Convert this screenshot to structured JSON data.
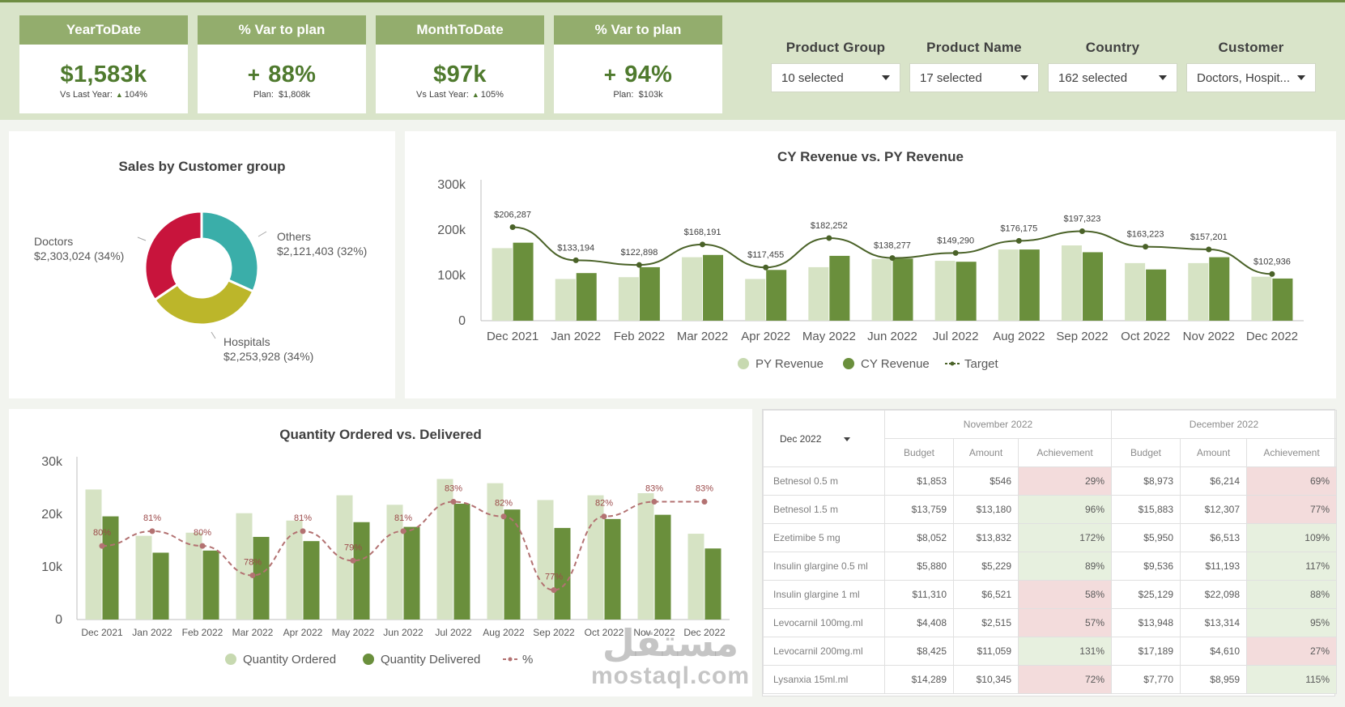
{
  "kpis": [
    {
      "title": "YearToDate",
      "value": "$1,583k",
      "prefix": "",
      "sub_label": "Vs Last Year:",
      "sub_value": "104%",
      "sub_arrow": "▲"
    },
    {
      "title": "% Var to plan",
      "value": "88%",
      "prefix": "+",
      "sub_label": "Plan:",
      "sub_value": "$1,808k",
      "sub_arrow": ""
    },
    {
      "title": "MonthToDate",
      "value": "$97k",
      "prefix": "",
      "sub_label": "Vs Last Year:",
      "sub_value": "105%",
      "sub_arrow": "▲"
    },
    {
      "title": "% Var to plan",
      "value": "94%",
      "prefix": "+",
      "sub_label": "Plan:",
      "sub_value": "$103k",
      "sub_arrow": ""
    }
  ],
  "filters": [
    {
      "label": "Product Group",
      "value": "10 selected"
    },
    {
      "label": "Product Name",
      "value": "17 selected"
    },
    {
      "label": "Country",
      "value": "162 selected"
    },
    {
      "label": "Customer",
      "value": "Doctors, Hospit..."
    }
  ],
  "colors": {
    "dark_green": "#6a8f3c",
    "light_green": "#d6e3c4",
    "line_green": "#4a6228",
    "pct_line": "#b37272",
    "donut_red": "#c8143c",
    "donut_teal": "#3aaea9",
    "donut_olive": "#bcb62a"
  },
  "chart_data": [
    {
      "type": "pie",
      "title": "Sales by Customer group",
      "slices": [
        {
          "label": "Others",
          "value": 2121403,
          "text": "$2,121,403 (32%)",
          "color": "#3aaea9"
        },
        {
          "label": "Hospitals",
          "value": 2253928,
          "text": "$2,253,928 (34%)",
          "color": "#bcb62a"
        },
        {
          "label": "Doctors",
          "value": 2303024,
          "text": "$2,303,024 (34%)",
          "color": "#c8143c"
        }
      ]
    },
    {
      "type": "bar",
      "title": "CY Revenue vs. PY Revenue",
      "categories": [
        "Dec 2021",
        "Jan 2022",
        "Feb 2022",
        "Mar 2022",
        "Apr 2022",
        "May 2022",
        "Jun 2022",
        "Jul 2022",
        "Aug 2022",
        "Sep 2022",
        "Oct 2022",
        "Nov 2022",
        "Dec 2022"
      ],
      "yticks": [
        "0",
        "100k",
        "200k",
        "300k"
      ],
      "ylim": [
        0,
        300000
      ],
      "series": [
        {
          "name": "PY Revenue",
          "values": [
            160000,
            92000,
            96000,
            140000,
            92000,
            118000,
            136000,
            132000,
            157000,
            166000,
            127000,
            127000,
            97000
          ]
        },
        {
          "name": "CY Revenue",
          "values": [
            172000,
            105000,
            118000,
            145000,
            112000,
            143000,
            137000,
            130000,
            157000,
            151000,
            113000,
            140000,
            93000
          ]
        },
        {
          "name": "Target",
          "values": [
            206287,
            133194,
            122898,
            168191,
            117455,
            182252,
            138277,
            149290,
            176175,
            197323,
            163223,
            157201,
            102936
          ],
          "labels": [
            "$206,287",
            "$133,194",
            "$122,898",
            "$168,191",
            "$117,455",
            "$182,252",
            "$138,277",
            "$149,290",
            "$176,175",
            "$197,323",
            "$163,223",
            "$157,201",
            "$102,936"
          ]
        }
      ],
      "legend": [
        "PY Revenue",
        "CY Revenue",
        "Target"
      ]
    },
    {
      "type": "bar",
      "title": "Quantity Ordered vs. Delivered",
      "categories": [
        "Dec 2021",
        "Jan 2022",
        "Feb 2022",
        "Mar 2022",
        "Apr 2022",
        "May 2022",
        "Jun 2022",
        "Jul 2022",
        "Aug 2022",
        "Sep 2022",
        "Oct 2022",
        "Nov 2022",
        "Dec 2022"
      ],
      "yticks": [
        "0",
        "10k",
        "20k",
        "30k"
      ],
      "ylim": [
        0,
        30000
      ],
      "series": [
        {
          "name": "Quantity Ordered",
          "values": [
            24700,
            15900,
            16500,
            20200,
            18800,
            23600,
            21800,
            26700,
            25900,
            22700,
            23600,
            24000,
            16300
          ]
        },
        {
          "name": "Quantity Delivered",
          "values": [
            19600,
            12700,
            13100,
            15700,
            14900,
            18500,
            17600,
            22000,
            20900,
            17400,
            19100,
            19900,
            13500
          ]
        },
        {
          "name": "%",
          "values": [
            80,
            81,
            80,
            78,
            81,
            79,
            81,
            83,
            82,
            77,
            82,
            83,
            83
          ],
          "labels": [
            "80%",
            "81%",
            "80%",
            "78%",
            "81%",
            "79%",
            "81%",
            "83%",
            "82%",
            "77%",
            "82%",
            "83%",
            "83%"
          ]
        }
      ],
      "legend": [
        "Quantity Ordered",
        "Quantity Delivered",
        "%"
      ]
    }
  ],
  "table": {
    "selector": "Dec 2022",
    "month_headers": [
      "November 2022",
      "December 2022"
    ],
    "col_headers": [
      "Budget",
      "Amount",
      "Achievement",
      "Budget",
      "Amount",
      "Achievement"
    ],
    "rows": [
      {
        "product": "Betnesol 0.5 m",
        "nov_budget": "$1,853",
        "nov_amount": "$546",
        "nov_ach": "29%",
        "nov_status": "bad",
        "dec_budget": "$8,973",
        "dec_amount": "$6,214",
        "dec_ach": "69%",
        "dec_status": "bad"
      },
      {
        "product": "Betnesol 1.5 m",
        "nov_budget": "$13,759",
        "nov_amount": "$13,180",
        "nov_ach": "96%",
        "nov_status": "good",
        "dec_budget": "$15,883",
        "dec_amount": "$12,307",
        "dec_ach": "77%",
        "dec_status": "bad"
      },
      {
        "product": "Ezetimibe 5 mg",
        "nov_budget": "$8,052",
        "nov_amount": "$13,832",
        "nov_ach": "172%",
        "nov_status": "good",
        "dec_budget": "$5,950",
        "dec_amount": "$6,513",
        "dec_ach": "109%",
        "dec_status": "good"
      },
      {
        "product": "Insulin glargine 0.5 ml",
        "nov_budget": "$5,880",
        "nov_amount": "$5,229",
        "nov_ach": "89%",
        "nov_status": "good",
        "dec_budget": "$9,536",
        "dec_amount": "$11,193",
        "dec_ach": "117%",
        "dec_status": "good"
      },
      {
        "product": "Insulin glargine 1 ml",
        "nov_budget": "$11,310",
        "nov_amount": "$6,521",
        "nov_ach": "58%",
        "nov_status": "bad",
        "dec_budget": "$25,129",
        "dec_amount": "$22,098",
        "dec_ach": "88%",
        "dec_status": "good"
      },
      {
        "product": "Levocarnil 100mg.ml",
        "nov_budget": "$4,408",
        "nov_amount": "$2,515",
        "nov_ach": "57%",
        "nov_status": "bad",
        "dec_budget": "$13,948",
        "dec_amount": "$13,314",
        "dec_ach": "95%",
        "dec_status": "good"
      },
      {
        "product": "Levocarnil 200mg.ml",
        "nov_budget": "$8,425",
        "nov_amount": "$11,059",
        "nov_ach": "131%",
        "nov_status": "good",
        "dec_budget": "$17,189",
        "dec_amount": "$4,610",
        "dec_ach": "27%",
        "dec_status": "bad"
      },
      {
        "product": "Lysanxia 15ml.ml",
        "nov_budget": "$14,289",
        "nov_amount": "$10,345",
        "nov_ach": "72%",
        "nov_status": "bad",
        "dec_budget": "$7,770",
        "dec_amount": "$8,959",
        "dec_ach": "115%",
        "dec_status": "good"
      }
    ]
  },
  "watermark": {
    "arabic": "مستقل",
    "latin": "mostaql.com"
  }
}
